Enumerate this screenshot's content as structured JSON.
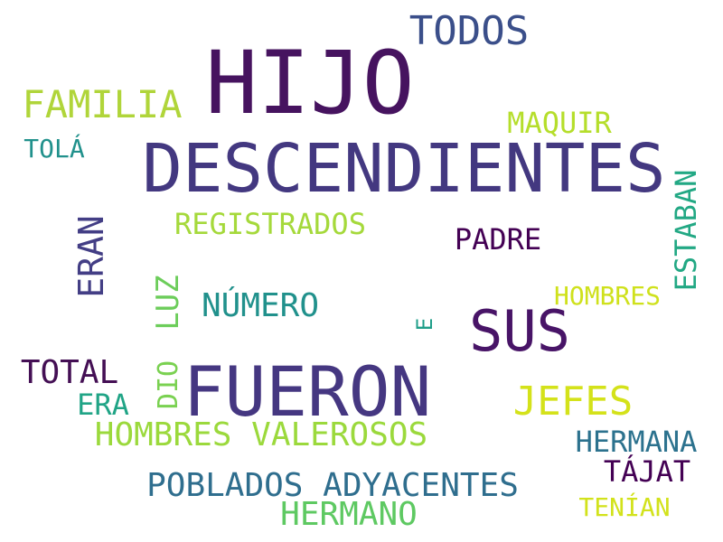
{
  "words": {
    "hijo": {
      "text": "HIJO",
      "color": "#46135f"
    },
    "descendientes": {
      "text": "DESCENDIENTES",
      "color": "#433880"
    },
    "fueron": {
      "text": "FUERON",
      "color": "#453781"
    },
    "sus": {
      "text": "SUS",
      "color": "#481467"
    },
    "todos": {
      "text": "TODOS",
      "color": "#3b4f8a"
    },
    "familia": {
      "text": "FAMILIA",
      "color": "#b0d53a"
    },
    "jefes": {
      "text": "JEFES",
      "color": "#d4e21a"
    },
    "hombres_valerosos": {
      "text": "HOMBRES VALEROSOS",
      "color": "#9bd93c"
    },
    "poblados_adyacentes": {
      "text": "POBLADOS ADYACENTES",
      "color": "#2f6e8e"
    },
    "numero": {
      "text": "NÚMERO",
      "color": "#21918c"
    },
    "total": {
      "text": "TOTAL",
      "color": "#440f54"
    },
    "registrados": {
      "text": "REGISTRADOS",
      "color": "#a5d93b"
    },
    "hermano": {
      "text": "HERMANO",
      "color": "#5ec962"
    },
    "hermana": {
      "text": "HERMANA",
      "color": "#2c728e"
    },
    "tajat": {
      "text": "TÁJAT",
      "color": "#440154"
    },
    "padre": {
      "text": "PADRE",
      "color": "#440154"
    },
    "maquir": {
      "text": "MAQUIR",
      "color": "#b5de2b"
    },
    "era": {
      "text": "ERA",
      "color": "#20a486"
    },
    "hombres": {
      "text": "HOMBRES",
      "color": "#cfe11c"
    },
    "tenian": {
      "text": "TENÍAN",
      "color": "#d2e21b"
    },
    "tola": {
      "text": "TOLÁ",
      "color": "#21918c"
    },
    "eran": {
      "text": "ERAN",
      "color": "#433e85"
    },
    "estaban": {
      "text": "ESTABAN",
      "color": "#22a884"
    },
    "luz": {
      "text": "LUZ",
      "color": "#6ccd5a"
    },
    "dio": {
      "text": "DIO",
      "color": "#7ad151"
    },
    "e": {
      "text": "E",
      "color": "#1f9e89"
    }
  }
}
